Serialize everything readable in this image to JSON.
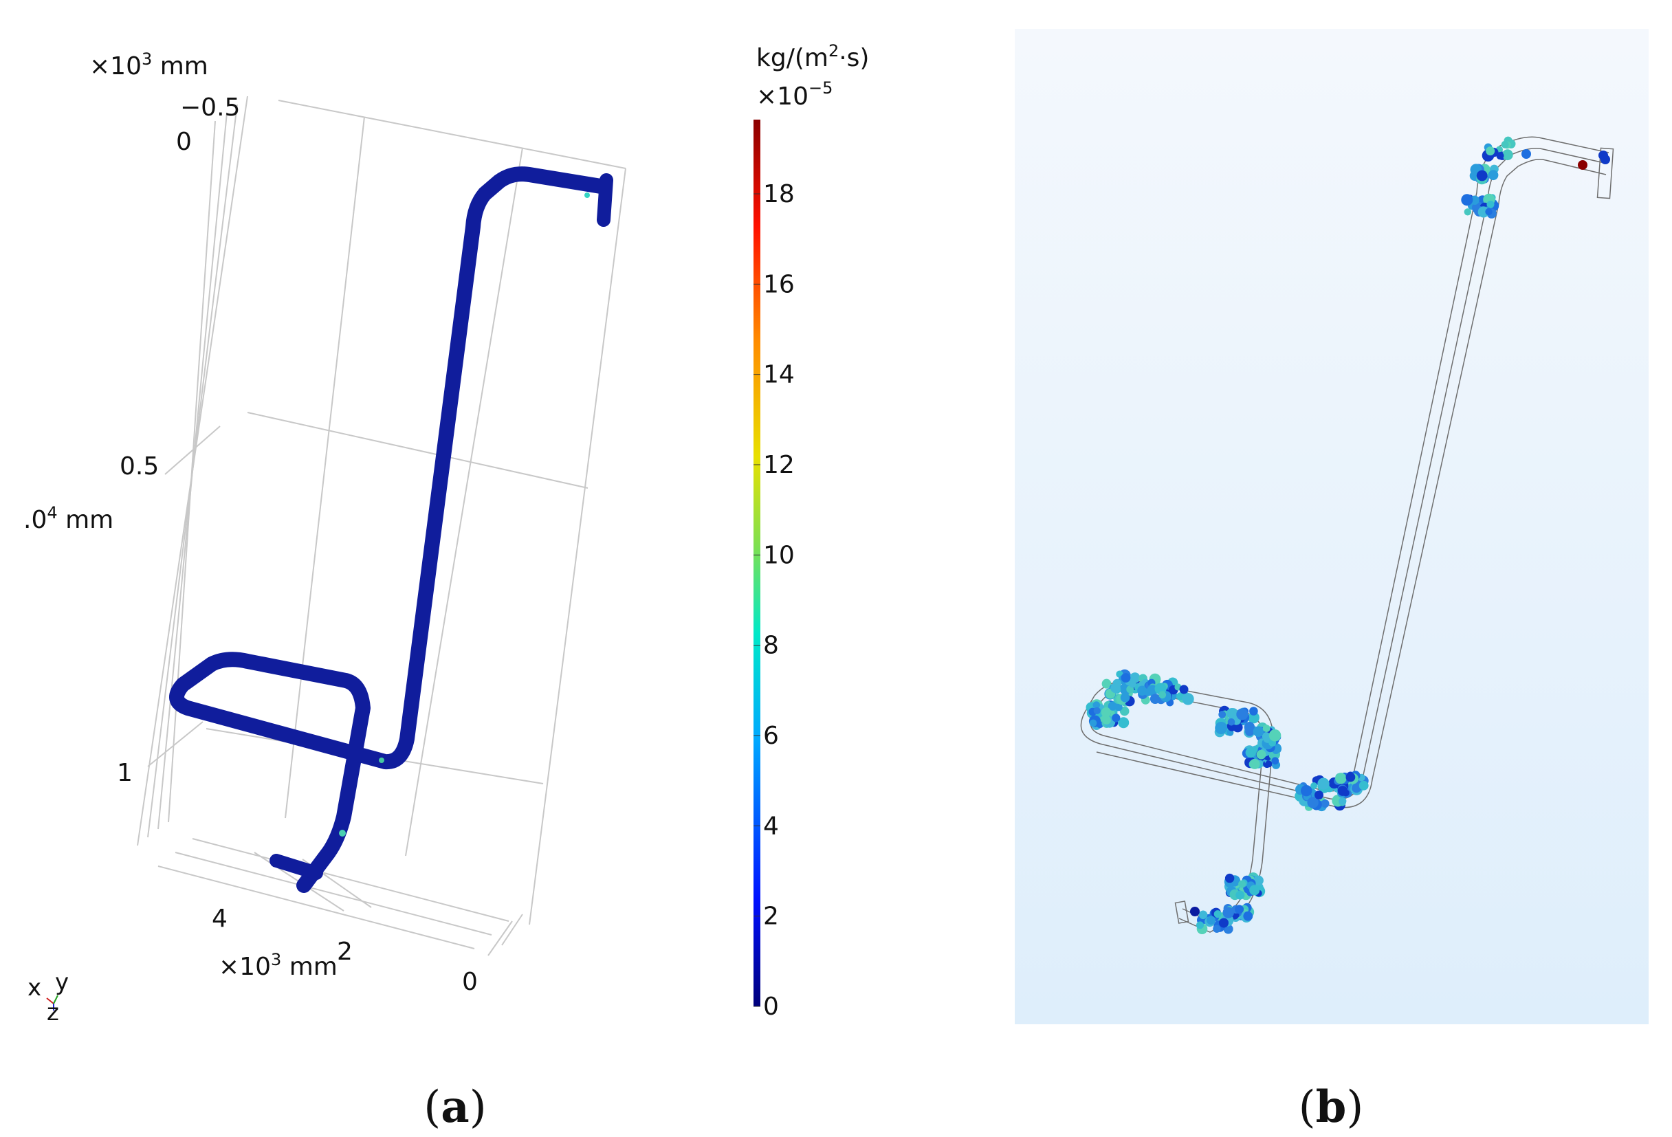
{
  "panel_a": {
    "caption_open": "(",
    "caption_letter": "a",
    "caption_close": ")",
    "axis_scale_top": "×10",
    "axis_scale_top_exp": "3",
    "axis_scale_top_unit": " mm",
    "axis_scale_mid": ".0",
    "axis_scale_mid_exp": "4",
    "axis_scale_mid_unit": " mm",
    "axis_scale_bottom": "×10",
    "axis_scale_bottom_exp": "3",
    "axis_scale_bottom_unit": " mm",
    "vertical_ticks": [
      "0",
      "0.5",
      "1"
    ],
    "top_tick": "−0.5",
    "bottom_ticks": [
      "4",
      "2",
      "0"
    ],
    "triad": {
      "x": "x",
      "y": "y",
      "z": "z"
    }
  },
  "colorbar": {
    "unit_prefix": "kg/(m",
    "unit_exp": "2",
    "unit_suffix": "·s)",
    "scale_prefix": "×10",
    "scale_exp": "−5",
    "ticks": [
      "18",
      "16",
      "14",
      "12",
      "10",
      "8",
      "6",
      "4",
      "2",
      "0"
    ],
    "max_color": "#8b0000",
    "min_color": "#00007a"
  },
  "panel_b": {
    "caption_open": "(",
    "caption_letter": "b",
    "caption_close": ")",
    "background_top": "#f4f8fd",
    "background_bottom": "#deeefb"
  },
  "colors": {
    "pipe": "#101d9c",
    "grid": "#c8c8c8",
    "outline": "#6e6e6e"
  }
}
